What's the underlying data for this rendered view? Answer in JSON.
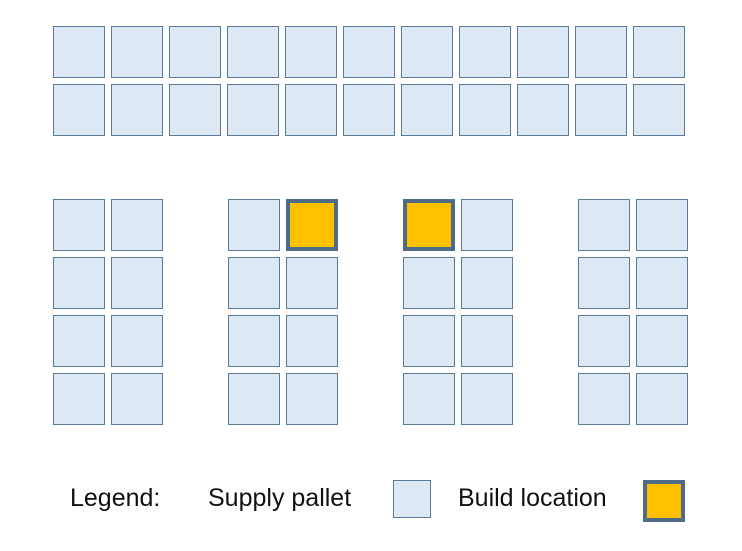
{
  "legend": {
    "title": "Legend:",
    "supply_label": "Supply pallet",
    "build_label": "Build location"
  },
  "colors": {
    "supply_fill": "#dde8f5",
    "supply_border": "#5b7a99",
    "build_fill": "#ffc000",
    "build_border": "#4f6b88"
  },
  "layout_grid": {
    "top_rows": [
      [
        "supply",
        "supply",
        "supply",
        "supply",
        "supply",
        "supply",
        "supply",
        "supply",
        "supply",
        "supply",
        "supply"
      ],
      [
        "supply",
        "supply",
        "supply",
        "supply",
        "supply",
        "supply",
        "supply",
        "supply",
        "supply",
        "supply",
        "supply"
      ]
    ],
    "columns": [
      [
        [
          "supply",
          "supply"
        ],
        [
          "supply",
          "supply"
        ],
        [
          "supply",
          "supply"
        ],
        [
          "supply",
          "supply"
        ]
      ],
      [
        [
          "supply",
          "build"
        ],
        [
          "supply",
          "supply"
        ],
        [
          "supply",
          "supply"
        ],
        [
          "supply",
          "supply"
        ]
      ],
      [
        [
          "build",
          "supply"
        ],
        [
          "supply",
          "supply"
        ],
        [
          "supply",
          "supply"
        ],
        [
          "supply",
          "supply"
        ]
      ],
      [
        [
          "supply",
          "supply"
        ],
        [
          "supply",
          "supply"
        ],
        [
          "supply",
          "supply"
        ],
        [
          "supply",
          "supply"
        ]
      ]
    ]
  }
}
